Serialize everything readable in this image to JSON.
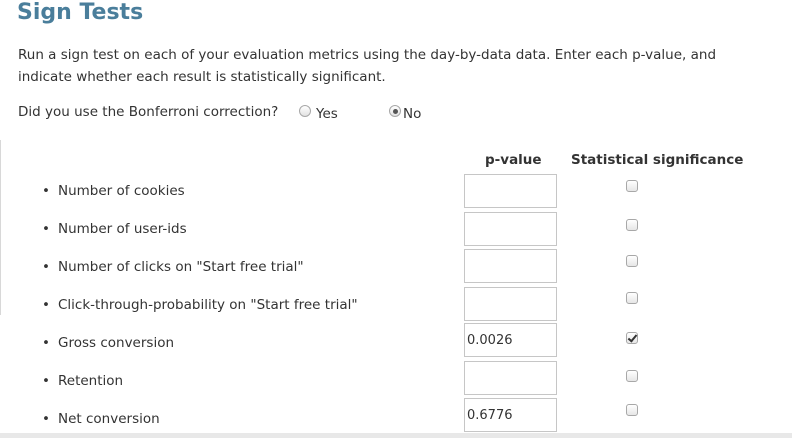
{
  "title": "Sign Tests",
  "instructions": "Run a sign test on each of your evaluation metrics using the day-by-data data. Enter each p-value, and indicate whether each result is statistically significant.",
  "bonferroni": {
    "question": "Did you use the Bonferroni correction?",
    "options": [
      {
        "label": "Yes",
        "selected": false
      },
      {
        "label": "No",
        "selected": true
      }
    ]
  },
  "table": {
    "headers": {
      "pvalue": "p-value",
      "significance": "Statistical significance"
    },
    "rows": [
      {
        "label": "Number of cookies",
        "bullet": "•",
        "pvalue": "",
        "significant": false
      },
      {
        "label": "Number of user-ids",
        "bullet": "•",
        "pvalue": "",
        "significant": false
      },
      {
        "label": "Number of clicks on \"Start free trial\"",
        "bullet": "•",
        "pvalue": "",
        "significant": false
      },
      {
        "label": "Click-through-probability on \"Start free trial\"",
        "bullet": "•",
        "pvalue": "",
        "significant": false
      },
      {
        "label": "Gross conversion",
        "bullet": "•",
        "pvalue": "0.0026",
        "significant": true
      },
      {
        "label": "Retention",
        "bullet": "•",
        "pvalue": "",
        "significant": false
      },
      {
        "label": "Net conversion",
        "bullet": "•",
        "pvalue": "0.6776",
        "significant": false
      }
    ]
  }
}
